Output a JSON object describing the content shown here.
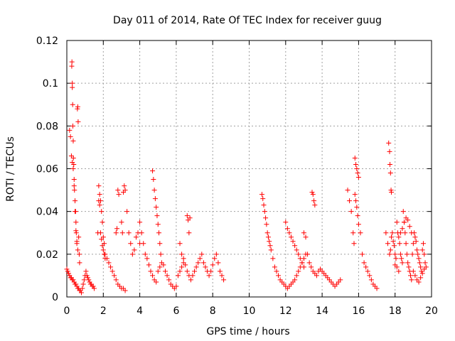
{
  "chart_data": {
    "type": "scatter",
    "title": "Day 011 of 2014, Rate Of TEC Index for receiver guug",
    "xlabel": "GPS time / hours",
    "ylabel": "ROTI / TECUs",
    "xlim": [
      0,
      20
    ],
    "ylim": [
      0,
      0.12
    ],
    "xticks": [
      0,
      2,
      4,
      6,
      8,
      10,
      12,
      14,
      16,
      18,
      20
    ],
    "yticks": [
      0,
      0.02,
      0.04,
      0.06,
      0.08,
      0.1,
      0.12
    ],
    "xtick_labels": [
      "0",
      "2",
      "4",
      "6",
      "8",
      "10",
      "12",
      "14",
      "16",
      "18",
      "20"
    ],
    "ytick_labels": [
      "0",
      "0.02",
      "0.04",
      "0.06",
      "0.08",
      "0.1",
      "0.12"
    ],
    "grid": true,
    "marker": "+",
    "color": "#ff0000",
    "series": [
      {
        "name": "ROTI",
        "x": [
          0.0,
          0.05,
          0.1,
          0.15,
          0.2,
          0.25,
          0.3,
          0.35,
          0.4,
          0.45,
          0.5,
          0.55,
          0.6,
          0.65,
          0.7,
          0.75,
          0.8,
          0.85,
          0.9,
          0.95,
          1.0,
          1.05,
          1.1,
          1.15,
          1.2,
          1.25,
          1.3,
          1.35,
          1.4,
          1.45,
          1.5,
          0.27,
          0.28,
          0.3,
          0.3,
          0.32,
          0.33,
          0.35,
          0.36,
          0.38,
          0.4,
          0.42,
          0.45,
          0.48,
          0.5,
          0.52,
          0.55,
          0.58,
          0.6,
          0.62,
          0.65,
          0.68,
          0.7,
          0.15,
          0.2,
          0.25,
          0.3,
          0.35,
          0.4,
          0.45,
          0.5,
          0.55,
          0.6,
          1.7,
          1.75,
          1.8,
          1.85,
          1.9,
          1.95,
          2.0,
          2.05,
          2.1,
          2.2,
          2.3,
          2.4,
          2.5,
          2.6,
          2.7,
          2.8,
          2.9,
          3.0,
          3.1,
          3.2,
          1.75,
          1.8,
          1.85,
          1.9,
          1.95,
          2.0,
          2.05,
          2.1,
          2.7,
          2.75,
          2.8,
          2.85,
          3.0,
          3.05,
          3.1,
          3.15,
          3.2,
          3.3,
          3.4,
          3.5,
          3.6,
          3.7,
          3.8,
          3.9,
          4.0,
          4.0,
          4.1,
          4.2,
          4.3,
          4.4,
          4.5,
          4.6,
          4.7,
          4.8,
          4.9,
          5.0,
          5.1,
          5.2,
          5.3,
          5.4,
          5.5,
          5.6,
          5.7,
          5.8,
          5.9,
          6.0,
          6.1,
          6.2,
          6.3,
          6.4,
          4.7,
          4.75,
          4.8,
          4.85,
          4.9,
          4.95,
          5.0,
          5.05,
          5.1,
          5.15,
          6.2,
          6.3,
          6.4,
          6.5,
          6.6,
          6.7,
          6.8,
          6.9,
          7.0,
          7.1,
          7.2,
          7.3,
          7.4,
          7.5,
          7.6,
          7.7,
          7.8,
          7.9,
          8.0,
          8.1,
          8.2,
          8.3,
          8.4,
          8.5,
          8.6,
          6.6,
          6.65,
          6.7,
          6.75,
          10.7,
          10.75,
          10.8,
          10.85,
          10.9,
          10.95,
          11.0,
          11.05,
          11.1,
          11.15,
          11.2,
          11.3,
          11.4,
          11.5,
          11.6,
          11.7,
          11.8,
          11.9,
          12.0,
          12.1,
          12.2,
          12.3,
          12.4,
          12.5,
          12.6,
          12.7,
          12.8,
          12.9,
          13.0,
          13.1,
          12.0,
          12.1,
          12.2,
          12.3,
          12.4,
          12.5,
          12.6,
          12.7,
          12.8,
          12.9,
          13.0,
          13.0,
          13.1,
          13.2,
          13.3,
          13.4,
          13.5,
          13.6,
          13.7,
          13.8,
          13.9,
          14.0,
          14.1,
          14.2,
          14.3,
          14.4,
          14.5,
          14.6,
          14.7,
          14.8,
          14.9,
          15.0,
          13.45,
          13.5,
          13.55,
          13.6,
          15.4,
          15.5,
          15.6,
          15.7,
          15.75,
          15.8,
          15.85,
          15.9,
          15.95,
          16.0,
          16.1,
          16.2,
          16.3,
          16.4,
          16.5,
          16.6,
          16.7,
          16.8,
          16.9,
          17.0,
          15.8,
          15.85,
          15.9,
          15.95,
          16.0,
          17.5,
          17.6,
          17.7,
          17.75,
          17.8,
          17.85,
          17.9,
          17.95,
          18.0,
          18.05,
          18.1,
          18.15,
          18.2,
          18.25,
          18.3,
          18.35,
          18.4,
          18.45,
          18.5,
          18.55,
          18.6,
          18.65,
          18.7,
          18.75,
          18.8,
          18.85,
          18.9,
          18.95,
          19.0,
          19.05,
          19.1,
          19.15,
          19.2,
          19.25,
          19.3,
          19.35,
          19.4,
          19.45,
          19.5,
          19.55,
          19.6,
          19.65,
          19.7,
          17.65,
          17.7,
          17.72,
          17.75,
          17.78,
          17.8,
          18.0,
          18.1,
          18.2,
          18.3,
          18.4,
          18.5,
          18.6,
          18.7,
          18.8,
          18.9,
          19.0,
          19.1,
          19.2,
          19.3,
          19.4,
          19.5,
          19.6
        ],
        "y": [
          0.013,
          0.012,
          0.011,
          0.01,
          0.009,
          0.009,
          0.008,
          0.008,
          0.007,
          0.006,
          0.006,
          0.005,
          0.004,
          0.004,
          0.003,
          0.003,
          0.002,
          0.004,
          0.006,
          0.008,
          0.01,
          0.012,
          0.01,
          0.009,
          0.008,
          0.007,
          0.006,
          0.006,
          0.005,
          0.005,
          0.004,
          0.108,
          0.11,
          0.1,
          0.098,
          0.09,
          0.08,
          0.073,
          0.065,
          0.062,
          0.055,
          0.05,
          0.045,
          0.04,
          0.035,
          0.03,
          0.025,
          0.088,
          0.089,
          0.082,
          0.028,
          0.02,
          0.016,
          0.078,
          0.075,
          0.066,
          0.063,
          0.06,
          0.052,
          0.04,
          0.031,
          0.026,
          0.022,
          0.03,
          0.052,
          0.048,
          0.045,
          0.04,
          0.035,
          0.028,
          0.025,
          0.02,
          0.018,
          0.016,
          0.014,
          0.012,
          0.01,
          0.008,
          0.006,
          0.005,
          0.004,
          0.004,
          0.003,
          0.045,
          0.043,
          0.03,
          0.027,
          0.024,
          0.022,
          0.02,
          0.018,
          0.03,
          0.032,
          0.05,
          0.048,
          0.035,
          0.03,
          0.049,
          0.052,
          0.05,
          0.04,
          0.03,
          0.025,
          0.02,
          0.022,
          0.028,
          0.03,
          0.025,
          0.035,
          0.03,
          0.025,
          0.02,
          0.018,
          0.015,
          0.012,
          0.01,
          0.008,
          0.007,
          0.012,
          0.014,
          0.016,
          0.015,
          0.012,
          0.01,
          0.008,
          0.006,
          0.005,
          0.004,
          0.005,
          0.01,
          0.012,
          0.014,
          0.016,
          0.059,
          0.055,
          0.05,
          0.046,
          0.042,
          0.038,
          0.034,
          0.03,
          0.025,
          0.02,
          0.025,
          0.02,
          0.018,
          0.015,
          0.012,
          0.01,
          0.008,
          0.01,
          0.012,
          0.014,
          0.016,
          0.018,
          0.02,
          0.016,
          0.014,
          0.012,
          0.01,
          0.012,
          0.015,
          0.018,
          0.02,
          0.016,
          0.012,
          0.01,
          0.008,
          0.038,
          0.036,
          0.03,
          0.037,
          0.048,
          0.046,
          0.043,
          0.04,
          0.037,
          0.034,
          0.03,
          0.028,
          0.026,
          0.024,
          0.022,
          0.018,
          0.014,
          0.012,
          0.01,
          0.008,
          0.007,
          0.006,
          0.005,
          0.004,
          0.005,
          0.006,
          0.007,
          0.008,
          0.01,
          0.012,
          0.014,
          0.016,
          0.018,
          0.02,
          0.035,
          0.032,
          0.03,
          0.028,
          0.026,
          0.024,
          0.022,
          0.02,
          0.018,
          0.016,
          0.014,
          0.03,
          0.028,
          0.02,
          0.016,
          0.014,
          0.012,
          0.011,
          0.01,
          0.012,
          0.013,
          0.012,
          0.011,
          0.01,
          0.009,
          0.008,
          0.007,
          0.006,
          0.005,
          0.006,
          0.007,
          0.008,
          0.049,
          0.048,
          0.045,
          0.043,
          0.05,
          0.045,
          0.04,
          0.03,
          0.025,
          0.065,
          0.062,
          0.06,
          0.058,
          0.056,
          0.03,
          0.02,
          0.016,
          0.014,
          0.012,
          0.01,
          0.008,
          0.006,
          0.005,
          0.004,
          0.048,
          0.045,
          0.042,
          0.038,
          0.034,
          0.03,
          0.025,
          0.02,
          0.022,
          0.028,
          0.03,
          0.026,
          0.024,
          0.02,
          0.018,
          0.035,
          0.03,
          0.028,
          0.025,
          0.02,
          0.018,
          0.016,
          0.04,
          0.035,
          0.03,
          0.025,
          0.02,
          0.016,
          0.014,
          0.012,
          0.01,
          0.008,
          0.02,
          0.025,
          0.03,
          0.028,
          0.026,
          0.022,
          0.02,
          0.018,
          0.016,
          0.014,
          0.012,
          0.022,
          0.025,
          0.02,
          0.016,
          0.014,
          0.072,
          0.068,
          0.062,
          0.058,
          0.05,
          0.049,
          0.015,
          0.014,
          0.012,
          0.03,
          0.032,
          0.035,
          0.037,
          0.036,
          0.033,
          0.03,
          0.012,
          0.01,
          0.008,
          0.007,
          0.009,
          0.011,
          0.013
        ]
      }
    ]
  }
}
